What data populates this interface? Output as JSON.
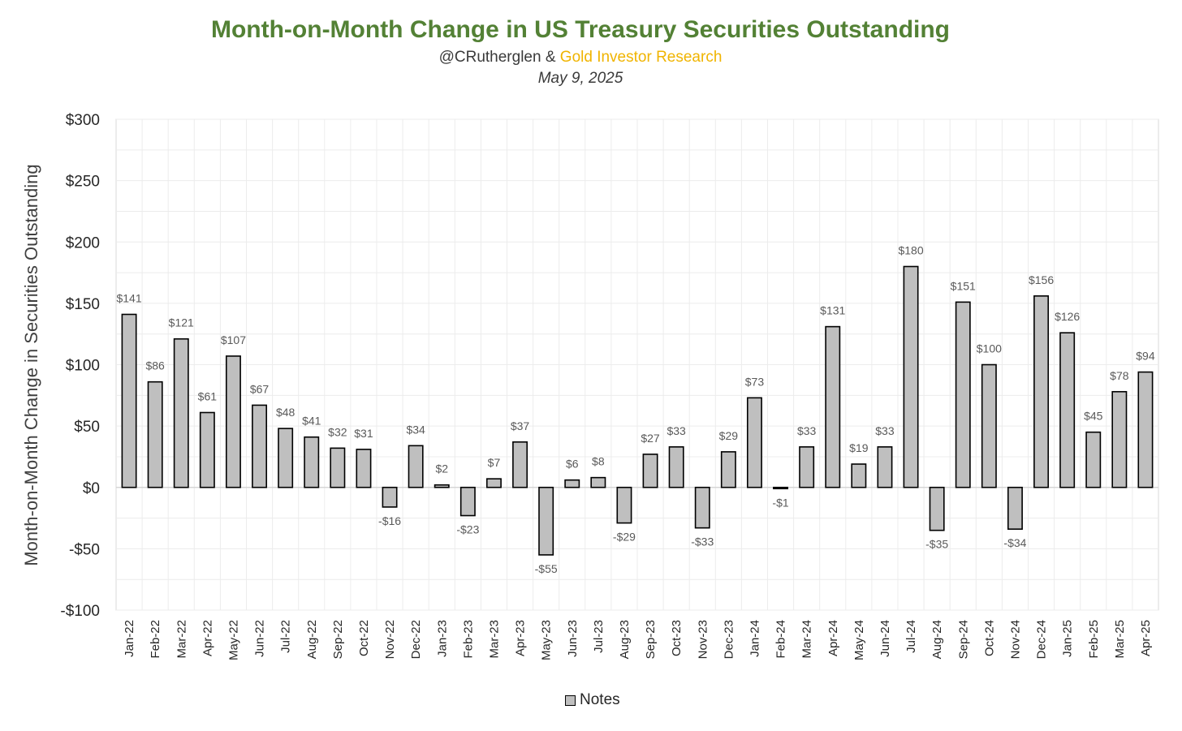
{
  "header": {
    "title": "Month-on-Month Change in US Treasury Securities Outstanding",
    "subtitle_author": "@CRutherglen",
    "subtitle_amp": " & ",
    "subtitle_brand": "Gold Investor Research",
    "date": "May 9, 2025"
  },
  "colors": {
    "title": "#538135",
    "brand": "#f0b400",
    "bar_fill": "#bfbfbf",
    "bar_stroke": "#000000",
    "grid": "#ececec"
  },
  "chart_data": {
    "type": "bar",
    "title": "Month-on-Month Change in US Treasury Securities Outstanding",
    "ylabel": "Month-on-Month Change in Securities Outstanding",
    "xlabel": "",
    "ylim": [
      -100,
      300
    ],
    "yticks": [
      300,
      250,
      200,
      150,
      100,
      50,
      0,
      -50,
      -100
    ],
    "ytick_labels": [
      "$300",
      "$250",
      "$200",
      "$150",
      "$100",
      "$50",
      "$0",
      "-$50",
      "-$100"
    ],
    "grid": true,
    "legend_position": "bottom",
    "series": [
      {
        "name": "Notes",
        "values": [
          141,
          86,
          121,
          61,
          107,
          67,
          48,
          41,
          32,
          31,
          -16,
          34,
          2,
          -23,
          7,
          37,
          -55,
          6,
          8,
          -29,
          27,
          33,
          -33,
          29,
          73,
          -1,
          33,
          131,
          19,
          33,
          180,
          -35,
          151,
          100,
          -34,
          156,
          126,
          45,
          78,
          94
        ],
        "labels": [
          "$141",
          "$86",
          "$121",
          "$61",
          "$107",
          "$67",
          "$48",
          "$41",
          "$32",
          "$31",
          "-$16",
          "$34",
          "$2",
          "-$23",
          "$7",
          "$37",
          "-$55",
          "$6",
          "$8",
          "-$29",
          "$27",
          "$33",
          "-$33",
          "$29",
          "$73",
          "-$1",
          "$33",
          "$131",
          "$19",
          "$33",
          "$180",
          "-$35",
          "$151",
          "$100",
          "-$34",
          "$156",
          "$126",
          "$45",
          "$78",
          "$94"
        ]
      }
    ],
    "categories": [
      "Jan-22",
      "Feb-22",
      "Mar-22",
      "Apr-22",
      "May-22",
      "Jun-22",
      "Jul-22",
      "Aug-22",
      "Sep-22",
      "Oct-22",
      "Nov-22",
      "Dec-22",
      "Jan-23",
      "Feb-23",
      "Mar-23",
      "Apr-23",
      "May-23",
      "Jun-23",
      "Jul-23",
      "Aug-23",
      "Sep-23",
      "Oct-23",
      "Nov-23",
      "Dec-23",
      "Jan-24",
      "Feb-24",
      "Mar-24",
      "Apr-24",
      "May-24",
      "Jun-24",
      "Jul-24",
      "Aug-24",
      "Sep-24",
      "Oct-24",
      "Nov-24",
      "Dec-24",
      "Jan-25",
      "Feb-25",
      "Mar-25",
      "Apr-25"
    ]
  }
}
